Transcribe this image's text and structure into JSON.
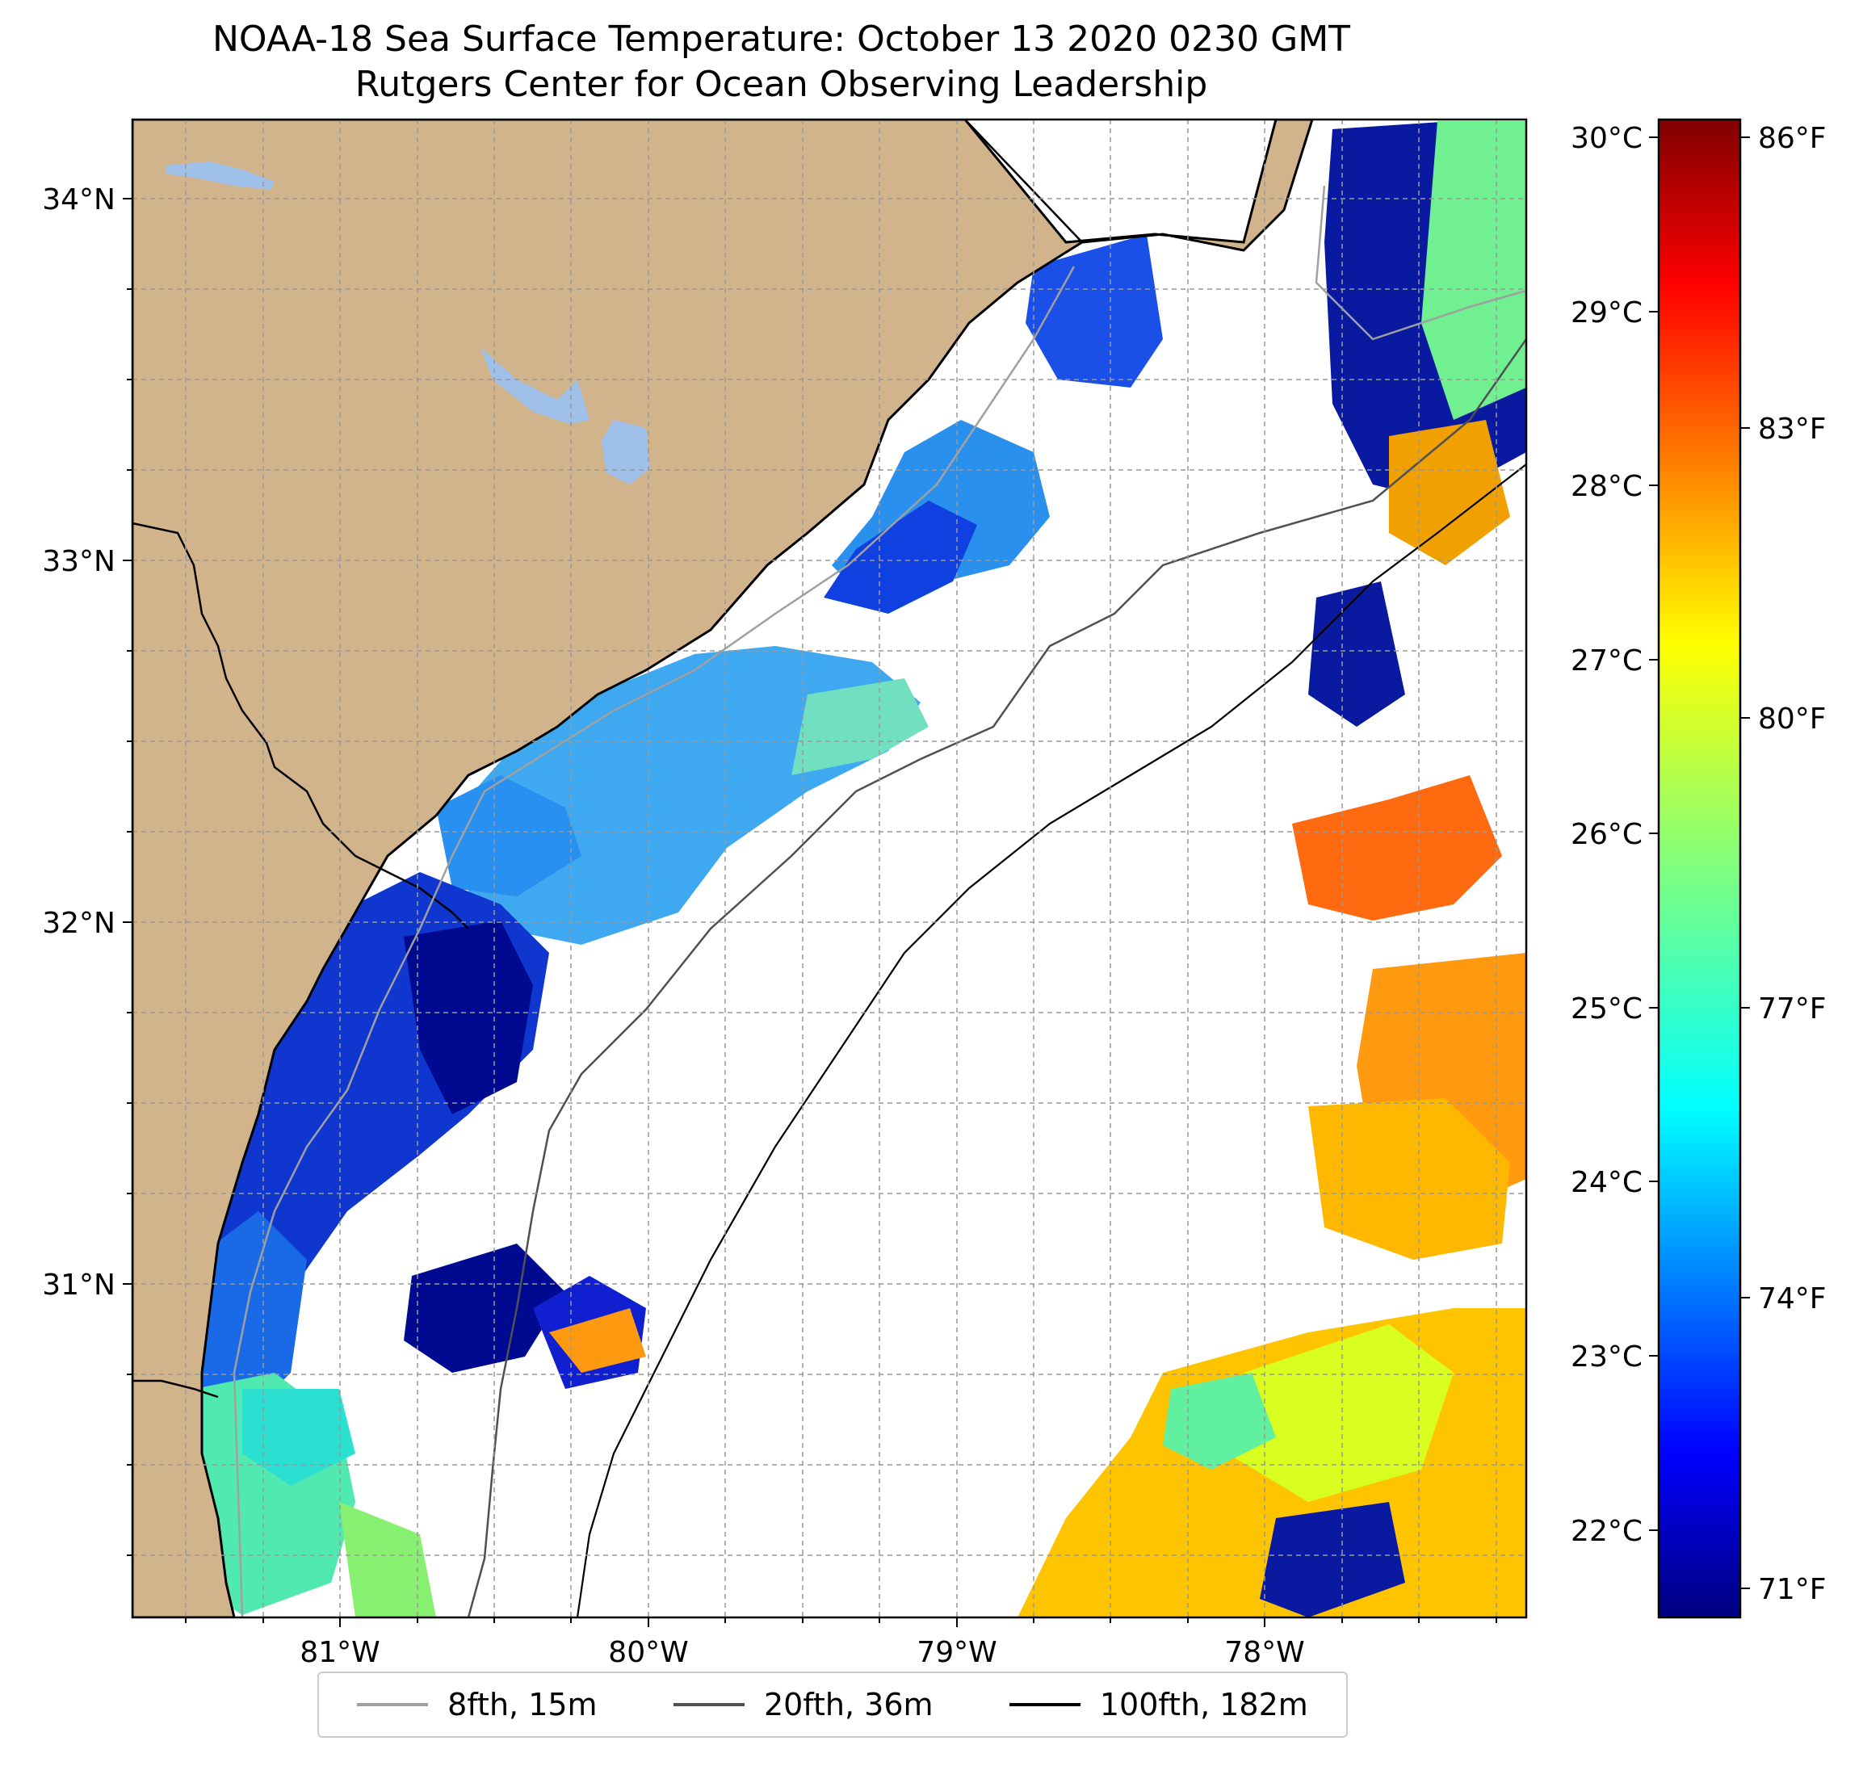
{
  "title": {
    "line1": "NOAA-18 Sea Surface Temperature: October 13 2020 0230 GMT",
    "line2": "Rutgers Center for Ocean Observing Leadership"
  },
  "map": {
    "lon_range": [
      -81.67,
      -77.15
    ],
    "lat_range": [
      30.1,
      34.24
    ],
    "lat_ticks": [
      "34°N",
      "33°N",
      "32°N",
      "31°N"
    ],
    "lon_ticks": [
      "81°W",
      "80°W",
      "79°W",
      "78°W"
    ],
    "land_color": "#d2b48c",
    "lake_color": "#9fc0e8",
    "grid": true
  },
  "colorbar": {
    "celsius_ticks": [
      "30°C",
      "29°C",
      "28°C",
      "27°C",
      "26°C",
      "25°C",
      "24°C",
      "23°C",
      "22°C"
    ],
    "fahrenheit_ticks": [
      "86°F",
      "83°F",
      "80°F",
      "77°F",
      "74°F",
      "71°F"
    ],
    "colormap": "jet",
    "range_c": [
      21.7,
      30.3
    ]
  },
  "legend": {
    "items": [
      {
        "label": "8fth, 15m",
        "color": "#a0a0a0"
      },
      {
        "label": "20fth, 36m",
        "color": "#505050"
      },
      {
        "label": "100fth, 182m",
        "color": "#000000"
      }
    ]
  }
}
